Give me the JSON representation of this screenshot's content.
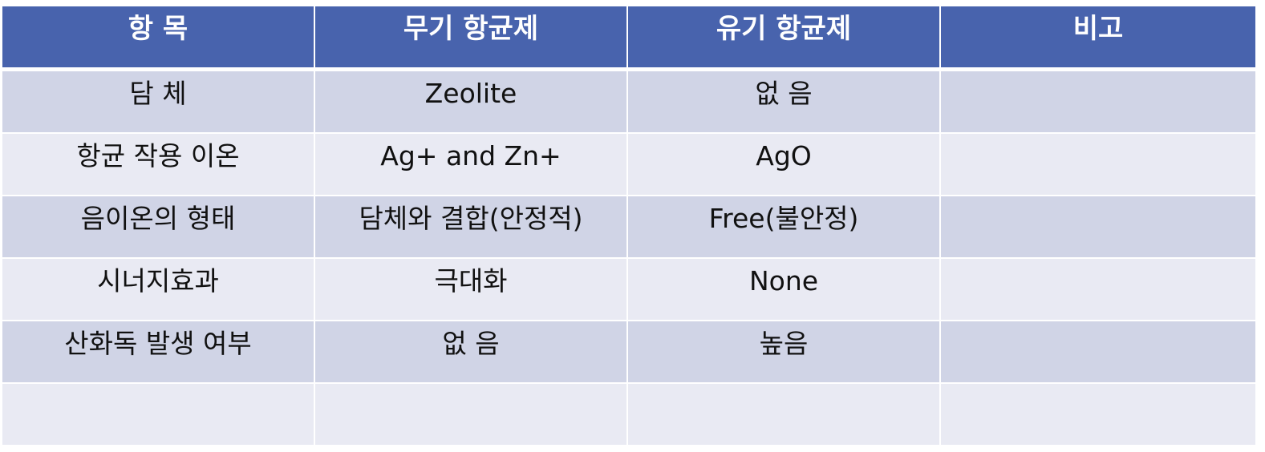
{
  "table": {
    "headers": [
      "항 목",
      "무기 항균제",
      "유기 항균제",
      "비고"
    ],
    "rows": [
      [
        "담 체",
        "Zeolite",
        "없 음",
        ""
      ],
      [
        "항균 작용 이온",
        "Ag+ and Zn+",
        "AgO",
        ""
      ],
      [
        "음이온의 형태",
        "담체와 결합(안정적)",
        "Free(불안정)",
        ""
      ],
      [
        "시너지효과",
        "극대화",
        "None",
        ""
      ],
      [
        "산화독 발생 여부",
        "없 음",
        "높음",
        ""
      ],
      [
        "",
        "",
        "",
        ""
      ]
    ]
  }
}
